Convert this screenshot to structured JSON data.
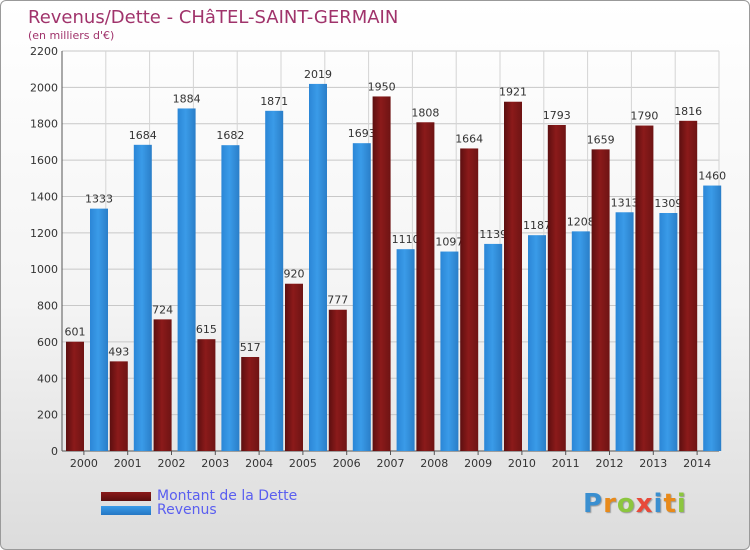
{
  "title": "Revenus/Dette - CHâTEL-SAINT-GERMAIN",
  "subtitle": "(en milliers d'€)",
  "colors": {
    "title": "#a0336b",
    "debt": "#8b1a1a",
    "revenue": "#3a9be8",
    "legend_text": "#5a5ef0"
  },
  "legend": {
    "debt_label": "Montant de la Dette",
    "revenue_label": "Revenus"
  },
  "logo": {
    "text": "Proxiti"
  },
  "chart_data": {
    "type": "bar",
    "categories": [
      "2000",
      "2001",
      "2002",
      "2003",
      "2004",
      "2005",
      "2006",
      "2007",
      "2008",
      "2009",
      "2010",
      "2011",
      "2012",
      "2013",
      "2014"
    ],
    "series": [
      {
        "name": "Montant de la Dette",
        "values": [
          601,
          493,
          724,
          615,
          517,
          920,
          777,
          1950,
          1808,
          1664,
          1921,
          1793,
          1659,
          1790,
          1816
        ]
      },
      {
        "name": "Revenus",
        "values": [
          1333,
          1684,
          1884,
          1682,
          1871,
          2019,
          1693,
          1110,
          1097,
          1139,
          1187,
          1208,
          1313,
          1309,
          1460
        ]
      }
    ],
    "ylim": [
      0,
      2200
    ],
    "yticks": [
      0,
      200,
      400,
      600,
      800,
      1000,
      1200,
      1400,
      1600,
      1800,
      2000,
      2200
    ],
    "grid": true,
    "legend_position": "bottom-left"
  }
}
